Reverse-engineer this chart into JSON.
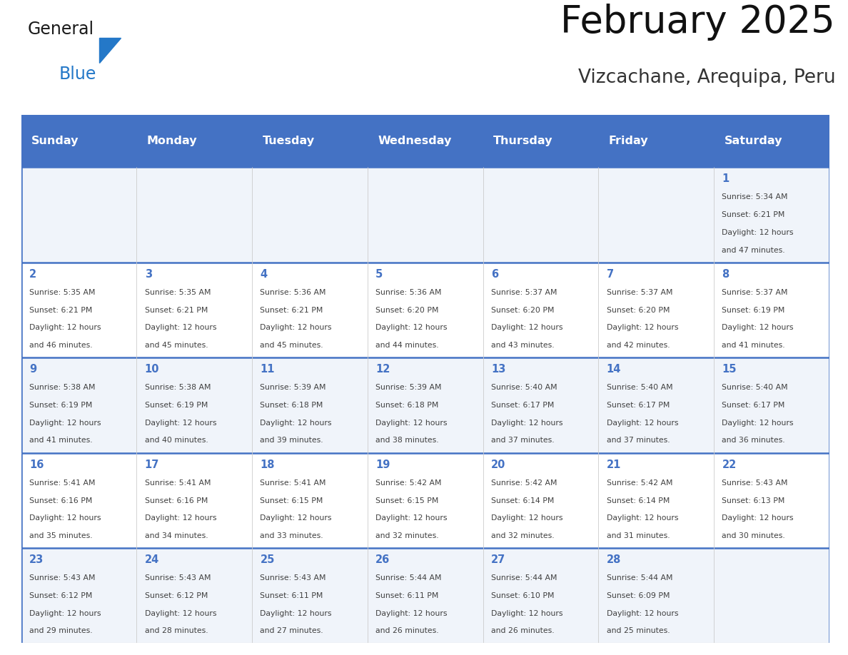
{
  "title": "February 2025",
  "subtitle": "Vizcachane, Arequipa, Peru",
  "days_of_week": [
    "Sunday",
    "Monday",
    "Tuesday",
    "Wednesday",
    "Thursday",
    "Friday",
    "Saturday"
  ],
  "header_bg_color": "#4472C4",
  "header_text_color": "#FFFFFF",
  "cell_bg_color_odd": "#F0F4FA",
  "cell_bg_color_even": "#FFFFFF",
  "border_color": "#4472C4",
  "day_num_color": "#4472C4",
  "text_color": "#404040",
  "background_color": "#FFFFFF",
  "logo_general_color": "#1A1A1A",
  "logo_blue_color": "#2478C8",
  "calendar_data": [
    [
      null,
      null,
      null,
      null,
      null,
      null,
      {
        "day": 1,
        "sunrise": "5:34 AM",
        "sunset": "6:21 PM",
        "daylight": "12 hours and 47 minutes."
      }
    ],
    [
      {
        "day": 2,
        "sunrise": "5:35 AM",
        "sunset": "6:21 PM",
        "daylight": "12 hours and 46 minutes."
      },
      {
        "day": 3,
        "sunrise": "5:35 AM",
        "sunset": "6:21 PM",
        "daylight": "12 hours and 45 minutes."
      },
      {
        "day": 4,
        "sunrise": "5:36 AM",
        "sunset": "6:21 PM",
        "daylight": "12 hours and 45 minutes."
      },
      {
        "day": 5,
        "sunrise": "5:36 AM",
        "sunset": "6:20 PM",
        "daylight": "12 hours and 44 minutes."
      },
      {
        "day": 6,
        "sunrise": "5:37 AM",
        "sunset": "6:20 PM",
        "daylight": "12 hours and 43 minutes."
      },
      {
        "day": 7,
        "sunrise": "5:37 AM",
        "sunset": "6:20 PM",
        "daylight": "12 hours and 42 minutes."
      },
      {
        "day": 8,
        "sunrise": "5:37 AM",
        "sunset": "6:19 PM",
        "daylight": "12 hours and 41 minutes."
      }
    ],
    [
      {
        "day": 9,
        "sunrise": "5:38 AM",
        "sunset": "6:19 PM",
        "daylight": "12 hours and 41 minutes."
      },
      {
        "day": 10,
        "sunrise": "5:38 AM",
        "sunset": "6:19 PM",
        "daylight": "12 hours and 40 minutes."
      },
      {
        "day": 11,
        "sunrise": "5:39 AM",
        "sunset": "6:18 PM",
        "daylight": "12 hours and 39 minutes."
      },
      {
        "day": 12,
        "sunrise": "5:39 AM",
        "sunset": "6:18 PM",
        "daylight": "12 hours and 38 minutes."
      },
      {
        "day": 13,
        "sunrise": "5:40 AM",
        "sunset": "6:17 PM",
        "daylight": "12 hours and 37 minutes."
      },
      {
        "day": 14,
        "sunrise": "5:40 AM",
        "sunset": "6:17 PM",
        "daylight": "12 hours and 37 minutes."
      },
      {
        "day": 15,
        "sunrise": "5:40 AM",
        "sunset": "6:17 PM",
        "daylight": "12 hours and 36 minutes."
      }
    ],
    [
      {
        "day": 16,
        "sunrise": "5:41 AM",
        "sunset": "6:16 PM",
        "daylight": "12 hours and 35 minutes."
      },
      {
        "day": 17,
        "sunrise": "5:41 AM",
        "sunset": "6:16 PM",
        "daylight": "12 hours and 34 minutes."
      },
      {
        "day": 18,
        "sunrise": "5:41 AM",
        "sunset": "6:15 PM",
        "daylight": "12 hours and 33 minutes."
      },
      {
        "day": 19,
        "sunrise": "5:42 AM",
        "sunset": "6:15 PM",
        "daylight": "12 hours and 32 minutes."
      },
      {
        "day": 20,
        "sunrise": "5:42 AM",
        "sunset": "6:14 PM",
        "daylight": "12 hours and 32 minutes."
      },
      {
        "day": 21,
        "sunrise": "5:42 AM",
        "sunset": "6:14 PM",
        "daylight": "12 hours and 31 minutes."
      },
      {
        "day": 22,
        "sunrise": "5:43 AM",
        "sunset": "6:13 PM",
        "daylight": "12 hours and 30 minutes."
      }
    ],
    [
      {
        "day": 23,
        "sunrise": "5:43 AM",
        "sunset": "6:12 PM",
        "daylight": "12 hours and 29 minutes."
      },
      {
        "day": 24,
        "sunrise": "5:43 AM",
        "sunset": "6:12 PM",
        "daylight": "12 hours and 28 minutes."
      },
      {
        "day": 25,
        "sunrise": "5:43 AM",
        "sunset": "6:11 PM",
        "daylight": "12 hours and 27 minutes."
      },
      {
        "day": 26,
        "sunrise": "5:44 AM",
        "sunset": "6:11 PM",
        "daylight": "12 hours and 26 minutes."
      },
      {
        "day": 27,
        "sunrise": "5:44 AM",
        "sunset": "6:10 PM",
        "daylight": "12 hours and 26 minutes."
      },
      {
        "day": 28,
        "sunrise": "5:44 AM",
        "sunset": "6:09 PM",
        "daylight": "12 hours and 25 minutes."
      },
      null
    ]
  ]
}
